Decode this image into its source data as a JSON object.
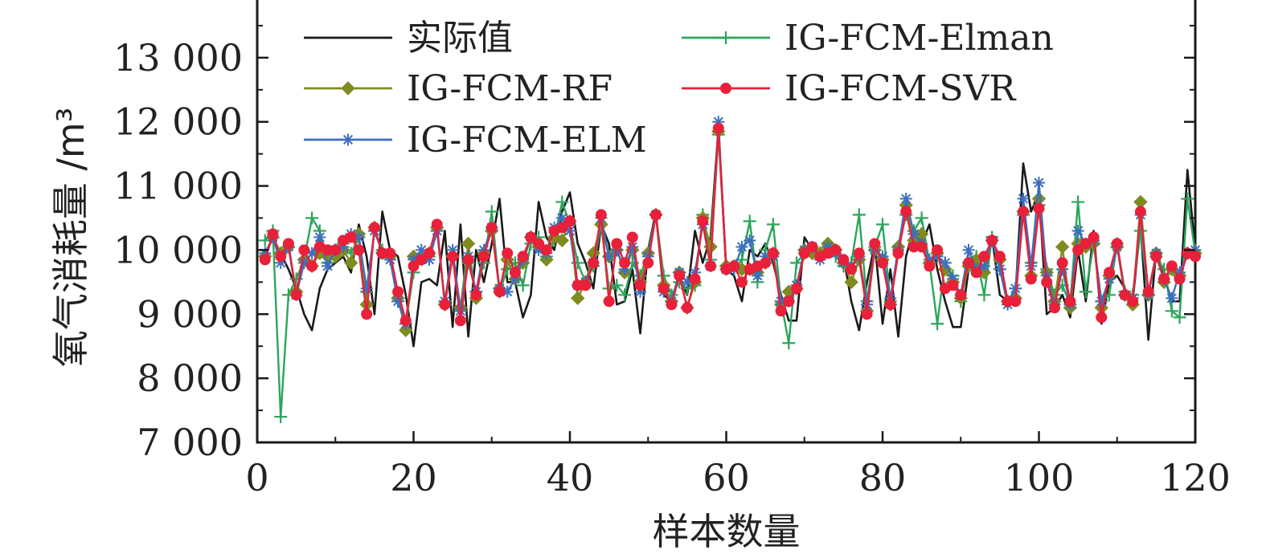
{
  "chart_data": {
    "type": "line",
    "title": "",
    "xlabel": "样本数量",
    "ylabel": "氧气消耗量 /m³",
    "xlim": [
      0,
      120
    ],
    "ylim": [
      7000,
      13900
    ],
    "xticks": [
      0,
      20,
      40,
      60,
      80,
      100,
      120
    ],
    "yticks": [
      7000,
      8000,
      9000,
      10000,
      11000,
      12000,
      13000
    ],
    "xtick_labels": [
      "0",
      "20",
      "40",
      "60",
      "80",
      "100",
      "120"
    ],
    "ytick_labels": [
      "7 000",
      "8 000",
      "9 000",
      "10 000",
      "11 000",
      "12 000",
      "13 000"
    ],
    "legend_position": "top-left, two columns",
    "grid": false,
    "x": [
      1,
      2,
      3,
      4,
      5,
      6,
      7,
      8,
      9,
      10,
      11,
      12,
      13,
      14,
      15,
      16,
      17,
      18,
      19,
      20,
      21,
      22,
      23,
      24,
      25,
      26,
      27,
      28,
      29,
      30,
      31,
      32,
      33,
      34,
      35,
      36,
      37,
      38,
      39,
      40,
      41,
      42,
      43,
      44,
      45,
      46,
      47,
      48,
      49,
      50,
      51,
      52,
      53,
      54,
      55,
      56,
      57,
      58,
      59,
      60,
      61,
      62,
      63,
      64,
      65,
      66,
      67,
      68,
      69,
      70,
      71,
      72,
      73,
      74,
      75,
      76,
      77,
      78,
      79,
      80,
      81,
      82,
      83,
      84,
      85,
      86,
      87,
      88,
      89,
      90,
      91,
      92,
      93,
      94,
      95,
      96,
      97,
      98,
      99,
      100,
      101,
      102,
      103,
      104,
      105,
      106,
      107,
      108,
      109,
      110,
      111,
      112,
      113,
      114,
      115,
      116,
      117,
      118,
      119,
      120
    ],
    "series": [
      {
        "name": "实际值",
        "color": "#1a1a1a",
        "marker": "none",
        "values": [
          9900,
          10200,
          9950,
          9700,
          9400,
          9000,
          8750,
          9400,
          9700,
          9800,
          9900,
          9650,
          10400,
          9900,
          9000,
          10600,
          10000,
          9900,
          9300,
          8500,
          9500,
          9550,
          9450,
          10300,
          8800,
          10400,
          8650,
          10000,
          9500,
          10100,
          10800,
          9500,
          9500,
          8950,
          9300,
          10750,
          10200,
          10000,
          10600,
          10900,
          10100,
          9800,
          9400,
          10400,
          10100,
          9150,
          9200,
          9700,
          8700,
          10000,
          10600,
          9300,
          9200,
          9600,
          9300,
          10300,
          9800,
          10200,
          11900,
          9700,
          9600,
          9200,
          10000,
          9900,
          10100,
          9800,
          9300,
          8900,
          8900,
          10200,
          10000,
          9900,
          10000,
          9950,
          9900,
          9200,
          8750,
          9500,
          10100,
          8850,
          9700,
          8650,
          9900,
          10350,
          10100,
          10400,
          9700,
          9200,
          8800,
          8800,
          9700,
          9900,
          9650,
          10200,
          9300,
          9200,
          9300,
          11350,
          10600,
          10900,
          9000,
          9100,
          9300,
          8950,
          10000,
          9200,
          10300,
          8850,
          9500,
          9600,
          9400,
          9200,
          10400,
          8600,
          10000,
          9600,
          9200,
          9200,
          11250,
          10000
        ]
      },
      {
        "name": "IG-FCM-Elman",
        "color": "#2ca55a",
        "marker": "plus",
        "values": [
          10150,
          10300,
          7400,
          9300,
          9550,
          9850,
          10500,
          10300,
          9800,
          10000,
          10100,
          9950,
          10200,
          9350,
          10300,
          10000,
          9900,
          9200,
          8850,
          9650,
          9850,
          9900,
          10300,
          9200,
          9900,
          9050,
          9800,
          9350,
          9800,
          10600,
          9350,
          9700,
          9800,
          9450,
          10100,
          10200,
          9900,
          10150,
          10750,
          10400,
          9800,
          9500,
          9750,
          10400,
          9400,
          9450,
          9300,
          9800,
          9600,
          9950,
          10550,
          9600,
          9300,
          9500,
          9400,
          9450,
          10550,
          9850,
          11800,
          9700,
          9700,
          9850,
          10450,
          9500,
          10000,
          10400,
          9200,
          8550,
          9800,
          9950,
          10000,
          9950,
          10050,
          9900,
          9750,
          9800,
          10550,
          9200,
          10050,
          10400,
          9200,
          10050,
          10550,
          10300,
          10500,
          9800,
          8850,
          9800,
          9600,
          9200,
          9800,
          9900,
          9300,
          10200,
          9700,
          9200,
          9400,
          10550,
          9800,
          10700,
          9700,
          9300,
          9450,
          9150,
          10750,
          9350,
          10100,
          9200,
          9300,
          10100,
          9350,
          9300,
          10300,
          9300,
          9900,
          9700,
          9050,
          8950,
          10800,
          9950
        ]
      },
      {
        "name": "IG-FCM-RF",
        "color": "#808b1f",
        "marker": "diamond",
        "values": [
          9900,
          10200,
          9950,
          10050,
          9350,
          9850,
          9750,
          9950,
          9900,
          9900,
          10000,
          9800,
          10250,
          9150,
          10350,
          9950,
          9900,
          9250,
          8750,
          9900,
          9900,
          9950,
          10350,
          9150,
          9900,
          9100,
          10100,
          9250,
          9950,
          10300,
          9400,
          9850,
          9550,
          9800,
          10200,
          10050,
          9850,
          10200,
          10150,
          10450,
          9250,
          9500,
          9950,
          10400,
          9900,
          10000,
          9650,
          10000,
          9500,
          9950,
          10550,
          9450,
          9200,
          9650,
          9100,
          9500,
          10500,
          10050,
          11850,
          9750,
          9750,
          9700,
          9700,
          9650,
          9800,
          9950,
          9150,
          9350,
          9400,
          10000,
          9950,
          9950,
          10100,
          10000,
          9800,
          9500,
          9850,
          9050,
          10000,
          9850,
          9150,
          10050,
          10700,
          10150,
          10250,
          9800,
          9950,
          9700,
          9500,
          9250,
          9750,
          9850,
          9650,
          10150,
          9850,
          9200,
          9250,
          10600,
          9600,
          10800,
          9650,
          9200,
          10050,
          9100,
          10100,
          10050,
          10100,
          9100,
          9600,
          10050,
          9300,
          9150,
          10750,
          9300,
          9950,
          9500,
          9700,
          9600,
          9950,
          9950
        ]
      },
      {
        "name": "IG-FCM-SVR",
        "color": "#e8203a",
        "marker": "circle",
        "values": [
          9850,
          10250,
          9900,
          10100,
          9300,
          10000,
          9750,
          10050,
          10000,
          10000,
          10150,
          10200,
          10000,
          9000,
          10350,
          9950,
          9950,
          9350,
          8900,
          9750,
          9850,
          9950,
          10400,
          9150,
          9900,
          8900,
          9850,
          9300,
          9900,
          10350,
          9350,
          9950,
          9650,
          9900,
          10200,
          10100,
          10000,
          10300,
          10350,
          10450,
          9450,
          9450,
          9800,
          10550,
          9200,
          10100,
          9800,
          10200,
          9450,
          9800,
          10550,
          9400,
          9150,
          9600,
          9100,
          9550,
          10450,
          9750,
          11900,
          9700,
          9750,
          9500,
          9700,
          9750,
          9800,
          9950,
          9050,
          9200,
          9400,
          9950,
          10050,
          9900,
          9950,
          10000,
          9850,
          9700,
          9950,
          9000,
          10100,
          9800,
          9150,
          9950,
          10600,
          10050,
          10050,
          9750,
          10000,
          9400,
          9450,
          9300,
          9800,
          9650,
          9900,
          10150,
          9900,
          9200,
          9200,
          10600,
          9550,
          10650,
          9500,
          9100,
          9800,
          9200,
          10000,
          10100,
          10200,
          8950,
          9650,
          10100,
          9300,
          9200,
          10600,
          9350,
          9900,
          9550,
          9750,
          9550,
          9950,
          9900
        ]
      },
      {
        "name": "IG-FCM-ELM",
        "color": "#3c6fbe",
        "marker": "asterisk",
        "values": [
          9950,
          10200,
          9800,
          10050,
          9300,
          9800,
          9950,
          10200,
          9750,
          10000,
          10050,
          10250,
          10200,
          9400,
          10300,
          9950,
          9850,
          9200,
          8850,
          9850,
          10000,
          9850,
          10300,
          9200,
          10000,
          9050,
          9900,
          9350,
          10000,
          10350,
          9400,
          9350,
          9550,
          9850,
          10200,
          10000,
          9950,
          10350,
          10500,
          10300,
          9450,
          9500,
          9800,
          10500,
          9900,
          10000,
          9700,
          10050,
          9350,
          9900,
          10550,
          9350,
          9200,
          9650,
          9500,
          9650,
          10400,
          9750,
          12000,
          9700,
          9700,
          10050,
          10150,
          9600,
          9900,
          9900,
          9200,
          9200,
          9450,
          10000,
          10050,
          9850,
          10050,
          9950,
          9800,
          9750,
          9900,
          9150,
          10000,
          9900,
          9250,
          10000,
          10800,
          10250,
          10100,
          9850,
          9900,
          9800,
          9550,
          9300,
          10000,
          9700,
          9750,
          10150,
          9700,
          9150,
          9400,
          10800,
          9750,
          11050,
          9600,
          9150,
          9700,
          9150,
          10300,
          10100,
          10150,
          9200,
          9550,
          10050,
          9300,
          9250,
          10550,
          9300,
          9950,
          9550,
          9250,
          9650,
          9950,
          10000
        ]
      }
    ]
  }
}
